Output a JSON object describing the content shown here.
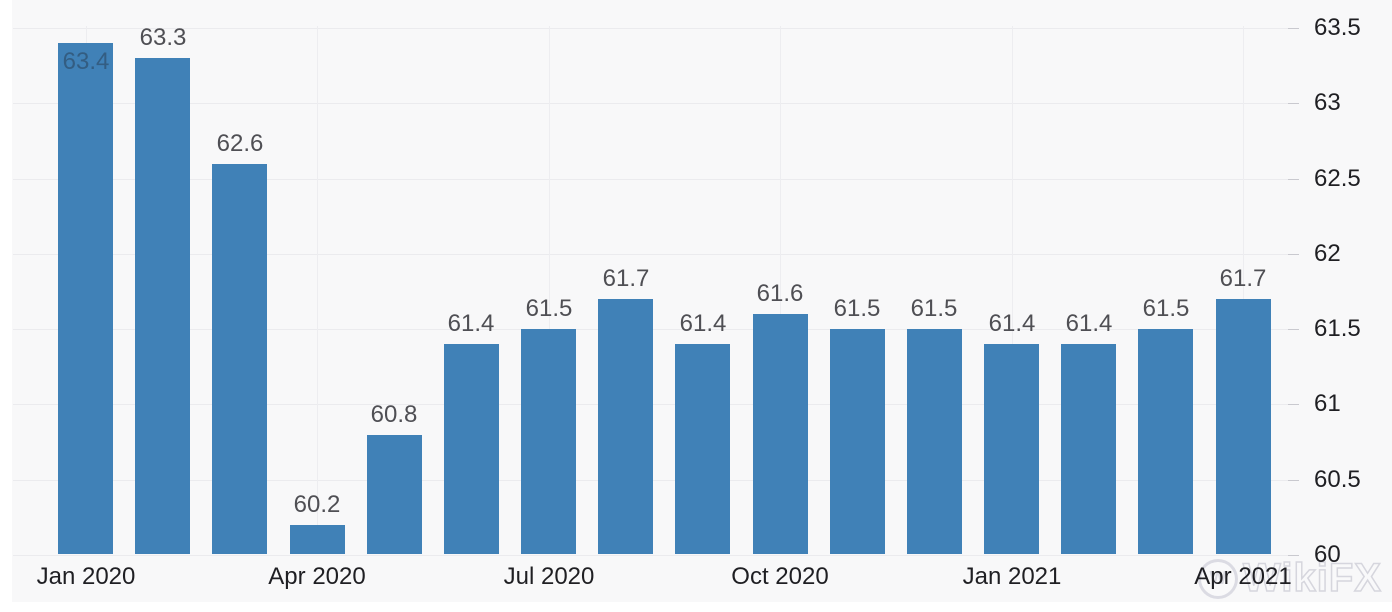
{
  "watermark": {
    "text": "WikiFX",
    "logo_letter": "W"
  },
  "chart_data": {
    "type": "bar",
    "title": "",
    "xlabel": "",
    "ylabel": "",
    "categories": [
      "Jan 2020",
      "Feb 2020",
      "Mar 2020",
      "Apr 2020",
      "May 2020",
      "Jun 2020",
      "Jul 2020",
      "Aug 2020",
      "Sep 2020",
      "Oct 2020",
      "Nov 2020",
      "Dec 2020",
      "Jan 2021",
      "Feb 2021",
      "Mar 2021",
      "Apr 2021"
    ],
    "values": [
      63.4,
      63.3,
      62.6,
      60.2,
      60.8,
      61.4,
      61.5,
      61.7,
      61.4,
      61.6,
      61.5,
      61.5,
      61.4,
      61.4,
      61.5,
      61.7
    ],
    "value_labels": [
      "63.4",
      "63.3",
      "62.6",
      "60.2",
      "60.8",
      "61.4",
      "61.5",
      "61.7",
      "61.4",
      "61.6",
      "61.5",
      "61.5",
      "61.4",
      "61.4",
      "61.5",
      "61.7"
    ],
    "first_label_position": "inside-bar-faint",
    "x_tick_labels": [
      "Jan 2020",
      "Apr 2020",
      "Jul 2020",
      "Oct 2020",
      "Jan 2021",
      "Apr 2021"
    ],
    "x_tick_indices": [
      0,
      3,
      6,
      9,
      12,
      15
    ],
    "y_ticks": [
      60,
      60.5,
      61,
      61.5,
      62,
      62.5,
      63,
      63.5
    ],
    "y_tick_labels": [
      "60",
      "60.5",
      "61",
      "61.5",
      "62",
      "62.5",
      "63",
      "63.5"
    ],
    "ylim": [
      60,
      63.5
    ],
    "axis_side": "right",
    "grid": true,
    "legend": false,
    "bar_color": "#4081b7",
    "value_label_color": "#4f4f54",
    "axis_label_color": "#1f1f23",
    "background_color": "#f8f8f9"
  }
}
